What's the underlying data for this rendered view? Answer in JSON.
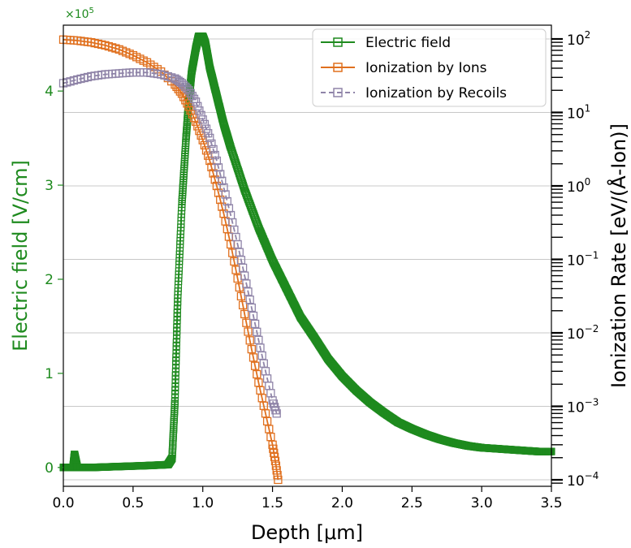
{
  "chart_data": {
    "type": "line",
    "colors": {
      "electric": "#1e8a1e",
      "ions": "#e0701e",
      "recoils": "#8f84a8",
      "grid": "#c8c8c8",
      "axis": "#000000"
    },
    "xlabel": "Depth [μm]",
    "xlim": [
      0.0,
      3.5
    ],
    "xticks": [
      "0.0",
      "0.5",
      "1.0",
      "1.5",
      "2.0",
      "2.5",
      "3.0",
      "3.5"
    ],
    "ylabel_left": "Electric field [V/cm]",
    "ylim_left": [
      -0.2,
      4.7
    ],
    "yticks_left": [
      "0",
      "1",
      "2",
      "3",
      "4"
    ],
    "left_scale_label": "×10",
    "left_scale_exp": "5",
    "ylabel_right": "Ionization Rate [eV/(Å-Ion)]",
    "yscale_right": "log",
    "ylim_right": [
      0.0001,
      100
    ],
    "yticks_right": [
      {
        "base": "10",
        "exp": "2"
      },
      {
        "base": "10",
        "exp": "1"
      },
      {
        "base": "10",
        "exp": "0"
      },
      {
        "base": "10",
        "exp": "−1"
      },
      {
        "base": "10",
        "exp": "−2"
      },
      {
        "base": "10",
        "exp": "−3"
      },
      {
        "base": "10",
        "exp": "−4"
      }
    ],
    "grid": "right-axis horizontal lines",
    "legend_position": "top-right",
    "series": [
      {
        "name": "Electric field",
        "axis": "left",
        "marker": "square",
        "style": "solid",
        "x": [
          0.0,
          0.05,
          0.07,
          0.08,
          0.1,
          0.2,
          0.4,
          0.6,
          0.75,
          0.78,
          0.8,
          0.82,
          0.85,
          0.88,
          0.9,
          0.92,
          0.95,
          0.97,
          1.0,
          1.02,
          1.05,
          1.1,
          1.15,
          1.2,
          1.3,
          1.4,
          1.5,
          1.6,
          1.7,
          1.8,
          1.9,
          2.0,
          2.1,
          2.2,
          2.3,
          2.4,
          2.5,
          2.6,
          2.7,
          2.8,
          2.9,
          3.0,
          3.1,
          3.2,
          3.3,
          3.4,
          3.5
        ],
        "values": [
          0.0,
          0.0,
          0.0,
          0.14,
          0.0,
          0.0,
          0.01,
          0.02,
          0.03,
          0.1,
          0.7,
          1.8,
          2.8,
          3.5,
          3.9,
          4.2,
          4.45,
          4.58,
          4.58,
          4.5,
          4.25,
          3.95,
          3.65,
          3.4,
          2.95,
          2.55,
          2.2,
          1.9,
          1.6,
          1.38,
          1.15,
          0.97,
          0.82,
          0.69,
          0.58,
          0.48,
          0.41,
          0.35,
          0.3,
          0.26,
          0.23,
          0.21,
          0.2,
          0.19,
          0.18,
          0.17,
          0.17
        ]
      },
      {
        "name": "Ionization by Ions",
        "axis": "right",
        "marker": "square",
        "style": "solid",
        "x": [
          0.0,
          0.1,
          0.2,
          0.3,
          0.4,
          0.5,
          0.6,
          0.7,
          0.8,
          0.85,
          0.9,
          0.95,
          1.0,
          1.05,
          1.1,
          1.15,
          1.2,
          1.25,
          1.3,
          1.35,
          1.4,
          1.45,
          1.5,
          1.52,
          1.54
        ],
        "values": [
          98,
          95,
          90,
          82,
          72,
          60,
          48,
          36,
          24,
          18,
          12,
          7.5,
          4.2,
          2.2,
          1.0,
          0.42,
          0.16,
          0.055,
          0.018,
          0.006,
          0.0021,
          0.0008,
          0.0003,
          0.00018,
          0.0001
        ]
      },
      {
        "name": "Ionization by Recoils",
        "axis": "right",
        "marker": "square",
        "style": "dashed",
        "x": [
          0.0,
          0.1,
          0.2,
          0.3,
          0.4,
          0.5,
          0.6,
          0.7,
          0.8,
          0.85,
          0.9,
          0.95,
          1.0,
          1.05,
          1.1,
          1.15,
          1.2,
          1.25,
          1.3,
          1.35,
          1.4,
          1.45,
          1.5,
          1.53
        ],
        "values": [
          25,
          28,
          31,
          33,
          34,
          35,
          35,
          33,
          29,
          25,
          20,
          14,
          8,
          4.5,
          2.2,
          0.95,
          0.4,
          0.16,
          0.06,
          0.022,
          0.008,
          0.003,
          0.0012,
          0.0008
        ]
      }
    ]
  }
}
